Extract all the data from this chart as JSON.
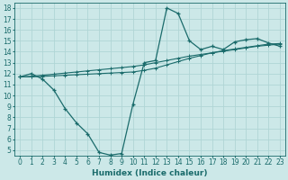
{
  "xlabel": "Humidex (Indice chaleur)",
  "x_values": [
    0,
    1,
    2,
    3,
    4,
    5,
    6,
    7,
    8,
    9,
    10,
    11,
    12,
    13,
    14,
    15,
    16,
    17,
    18,
    19,
    20,
    21,
    22,
    23
  ],
  "line1": [
    11.7,
    12.0,
    11.5,
    10.5,
    8.8,
    7.5,
    6.5,
    4.8,
    4.55,
    4.7,
    9.2,
    13.0,
    13.2,
    18.0,
    17.5,
    15.0,
    14.2,
    14.5,
    14.2,
    14.9,
    15.1,
    15.2,
    14.8,
    14.5
  ],
  "line2": [
    11.7,
    11.7,
    11.75,
    11.8,
    11.85,
    11.9,
    11.95,
    12.0,
    12.05,
    12.1,
    12.15,
    12.3,
    12.5,
    12.8,
    13.1,
    13.4,
    13.65,
    13.9,
    14.1,
    14.25,
    14.4,
    14.55,
    14.7,
    14.75
  ],
  "line3": [
    11.7,
    11.75,
    11.85,
    11.95,
    12.05,
    12.15,
    12.25,
    12.35,
    12.45,
    12.55,
    12.65,
    12.8,
    13.0,
    13.2,
    13.4,
    13.6,
    13.75,
    13.9,
    14.05,
    14.2,
    14.35,
    14.5,
    14.6,
    14.7
  ],
  "bg_color": "#cce8e8",
  "line_color": "#1a6b6b",
  "grid_color": "#b0d5d5",
  "ylim_min": 4.5,
  "ylim_max": 18.5,
  "xlim_min": -0.5,
  "xlim_max": 23.5,
  "yticks": [
    5,
    6,
    7,
    8,
    9,
    10,
    11,
    12,
    13,
    14,
    15,
    16,
    17,
    18
  ],
  "xticks": [
    0,
    1,
    2,
    3,
    4,
    5,
    6,
    7,
    8,
    9,
    10,
    11,
    12,
    13,
    14,
    15,
    16,
    17,
    18,
    19,
    20,
    21,
    22,
    23
  ],
  "tick_fontsize": 5.5,
  "xlabel_fontsize": 6.5
}
